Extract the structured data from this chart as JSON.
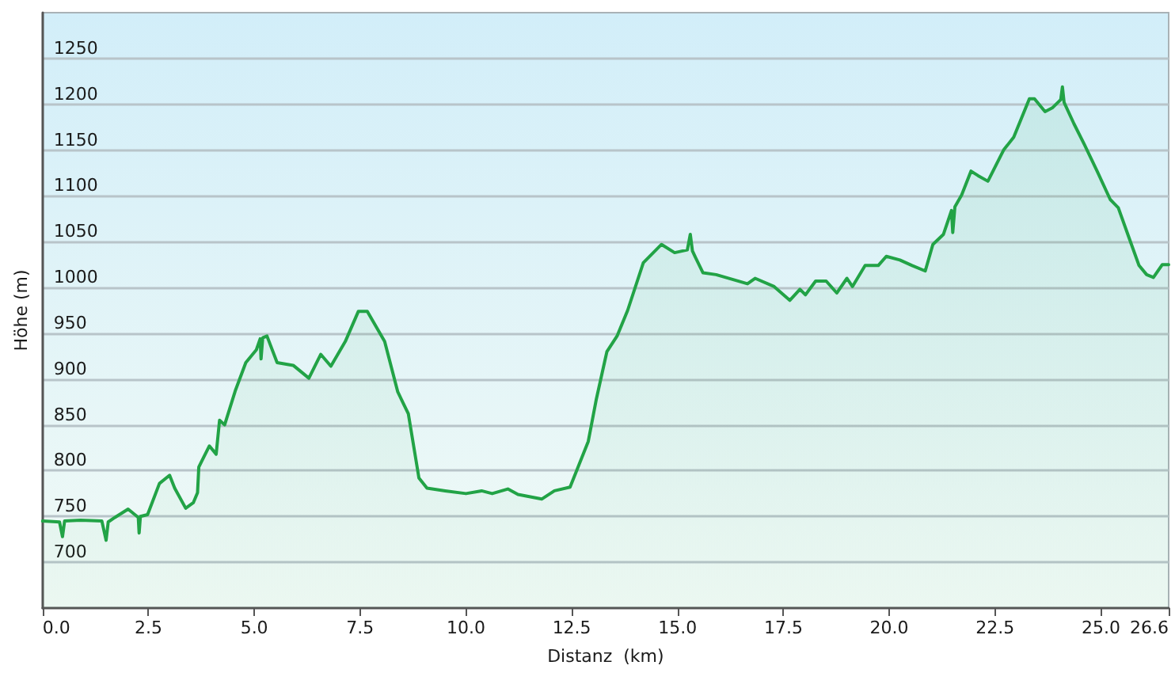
{
  "chart_data": {
    "type": "area",
    "xlabel": "Distanz  (km)",
    "ylabel": "Höhe (m)",
    "x": [
      0,
      0.4,
      0.47,
      0.52,
      0.9,
      1.4,
      1.5,
      1.55,
      1.71,
      2.02,
      2.26,
      2.28,
      2.31,
      2.48,
      2.76,
      3.0,
      3.12,
      3.38,
      3.56,
      3.66,
      3.69,
      3.94,
      4.1,
      4.18,
      4.3,
      4.55,
      4.8,
      5.05,
      5.14,
      5.16,
      5.2,
      5.3,
      5.54,
      5.92,
      6.29,
      6.57,
      6.81,
      7.15,
      7.46,
      7.67,
      8.08,
      8.39,
      8.64,
      8.89,
      9.08,
      9.51,
      10.0,
      10.37,
      10.62,
      10.99,
      11.23,
      11.79,
      12.09,
      12.46,
      12.65,
      12.89,
      13.08,
      13.33,
      13.57,
      13.82,
      14.19,
      14.62,
      14.93,
      15.23,
      15.3,
      15.35,
      15.42,
      15.6,
      15.91,
      16.65,
      16.83,
      17.28,
      17.65,
      17.89,
      18.02,
      18.26,
      18.51,
      18.76,
      19.0,
      19.13,
      19.43,
      19.74,
      19.93,
      20.25,
      20.54,
      20.85,
      21.03,
      21.28,
      21.47,
      21.5,
      21.55,
      21.71,
      21.93,
      22.1,
      22.33,
      22.7,
      22.94,
      23.31,
      23.43,
      23.68,
      23.85,
      24.05,
      24.09,
      24.13,
      24.36,
      24.61,
      24.91,
      25.22,
      25.41,
      25.65,
      25.9,
      26.08,
      26.24,
      26.45,
      26.6
    ],
    "values": [
      745,
      744,
      728,
      745,
      746,
      745,
      724,
      744,
      749,
      758,
      749,
      732,
      750,
      752,
      786,
      795,
      781,
      759,
      765,
      776,
      804,
      827,
      818,
      855,
      850,
      887,
      918,
      932,
      944,
      922,
      945,
      947,
      918,
      915,
      901,
      927,
      914,
      941,
      974,
      974,
      941,
      886,
      862,
      792,
      781,
      778,
      775,
      778,
      775,
      780,
      774,
      769,
      778,
      782,
      804,
      832,
      878,
      930,
      947,
      975,
      1027,
      1047,
      1038,
      1041,
      1058,
      1040,
      1033,
      1016,
      1014,
      1004,
      1010,
      1001,
      986,
      998,
      992,
      1007,
      1007,
      994,
      1010,
      1001,
      1024,
      1024,
      1034,
      1030,
      1024,
      1018,
      1047,
      1058,
      1084,
      1060,
      1088,
      1101,
      1127,
      1122,
      1116,
      1150,
      1164,
      1206,
      1206,
      1192,
      1196,
      1205,
      1219,
      1202,
      1179,
      1156,
      1127,
      1096,
      1087,
      1056,
      1024,
      1014,
      1011,
      1025,
      1025
    ],
    "color": "#22a346",
    "xlim": [
      0,
      26.6
    ],
    "ylim": [
      650,
      1300
    ],
    "xticks": [
      {
        "value": 0,
        "label": "0.0"
      },
      {
        "value": 2.5,
        "label": "2.5"
      },
      {
        "value": 5,
        "label": "5.0"
      },
      {
        "value": 7.5,
        "label": "7.5"
      },
      {
        "value": 10,
        "label": "10.0"
      },
      {
        "value": 12.5,
        "label": "12.5"
      },
      {
        "value": 15,
        "label": "15.0"
      },
      {
        "value": 17.5,
        "label": "17.5"
      },
      {
        "value": 20,
        "label": "20.0"
      },
      {
        "value": 22.5,
        "label": "22.5"
      },
      {
        "value": 25,
        "label": "25.0"
      },
      {
        "value": 26.6,
        "label": "26.6"
      }
    ],
    "yticks": [
      700,
      750,
      800,
      850,
      900,
      950,
      1000,
      1050,
      1100,
      1150,
      1200,
      1250
    ],
    "grid": "y"
  }
}
